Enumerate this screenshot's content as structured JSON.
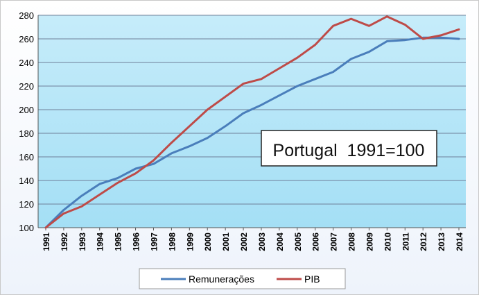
{
  "chart_data": {
    "type": "line",
    "title": "Portugal  1991=100",
    "xlabel": "",
    "ylabel": "",
    "ylim": [
      100,
      280
    ],
    "yticks": [
      100,
      120,
      140,
      160,
      180,
      200,
      220,
      240,
      260,
      280
    ],
    "grid": true,
    "legend": "bottom-center",
    "x": [
      "1991",
      "1992",
      "1993",
      "1994",
      "1995",
      "1996",
      "1997",
      "1998",
      "1999",
      "2000",
      "2001",
      "2002",
      "2003",
      "2004",
      "2005",
      "2006",
      "2007",
      "2008",
      "2009",
      "2010",
      "2011",
      "2012",
      "2013",
      "2014"
    ],
    "series": [
      {
        "name": "Remunerações",
        "color": "#4a7ebb",
        "values": [
          100,
          115,
          127,
          137,
          142,
          150,
          154,
          163,
          169,
          176,
          186,
          197,
          204,
          212,
          220,
          226,
          232,
          243,
          249,
          258,
          259,
          261,
          261,
          260
        ]
      },
      {
        "name": "PIB",
        "color": "#be4b48",
        "values": [
          100,
          112,
          118,
          128,
          138,
          146,
          157,
          172,
          186,
          200,
          211,
          222,
          226,
          235,
          244,
          255,
          271,
          277,
          271,
          279,
          272,
          260,
          263,
          268
        ]
      }
    ]
  }
}
